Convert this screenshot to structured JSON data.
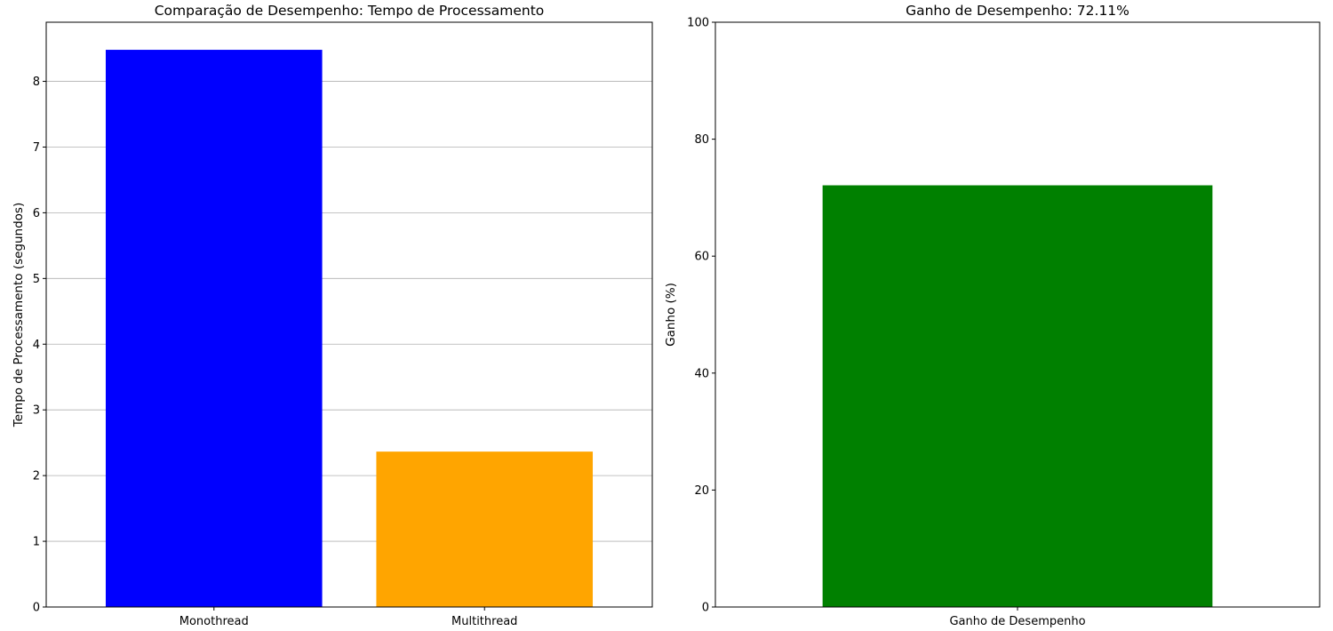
{
  "chart_data": [
    {
      "type": "bar",
      "title": "Comparação de Desempenho: Tempo de Processamento",
      "xlabel": "",
      "ylabel": "Tempo de Processamento (segundos)",
      "categories": [
        "Monothread",
        "Multithread"
      ],
      "values": [
        8.48,
        2.365
      ],
      "colors": [
        "#0000ff",
        "#ffa500"
      ],
      "ylim": [
        0,
        8.9
      ],
      "yticks": [
        0,
        1,
        2,
        3,
        4,
        5,
        6,
        7,
        8
      ],
      "grid": "y"
    },
    {
      "type": "bar",
      "title": "Ganho de Desempenho: 72.11%",
      "xlabel": "",
      "ylabel": "Ganho (%)",
      "categories": [
        "Ganho de Desempenho"
      ],
      "values": [
        72.11
      ],
      "colors": [
        "#008000"
      ],
      "ylim": [
        0,
        100
      ],
      "yticks": [
        0,
        20,
        40,
        60,
        80,
        100
      ],
      "grid": "none"
    }
  ]
}
